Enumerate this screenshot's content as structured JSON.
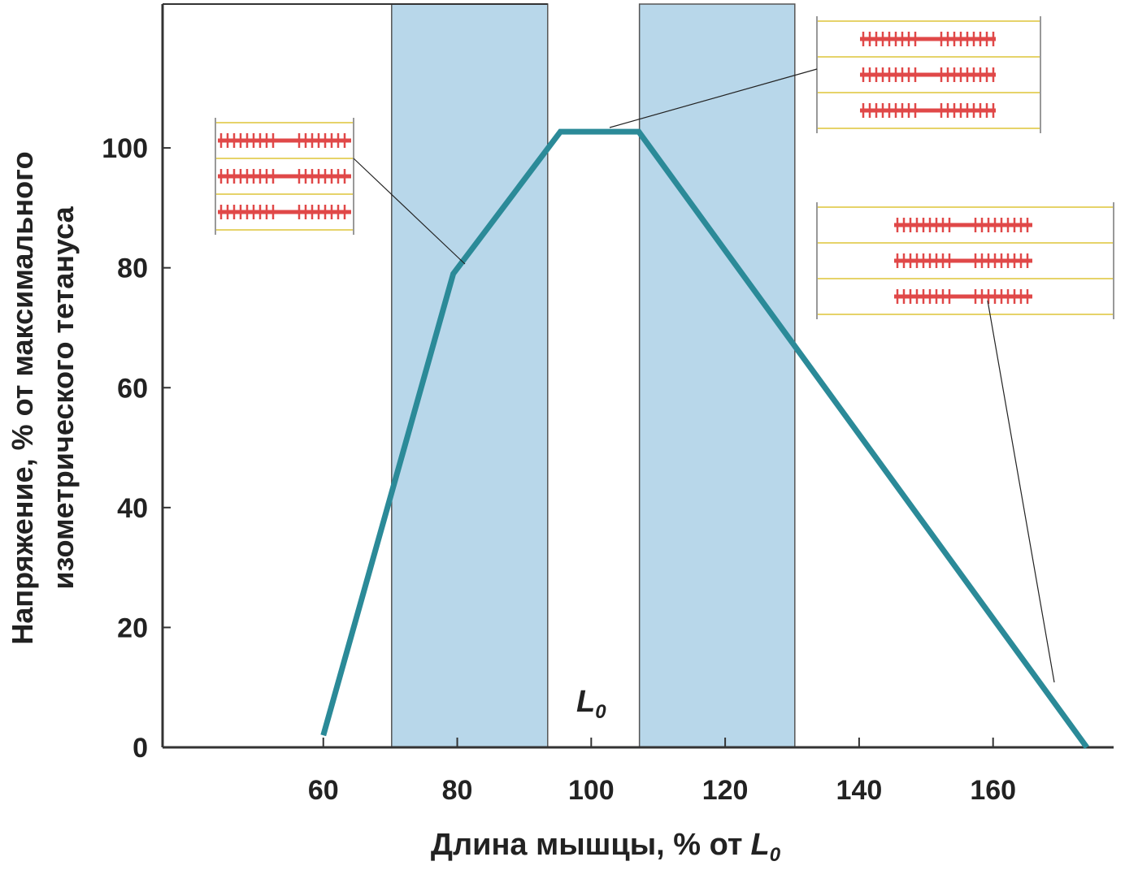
{
  "chart_data": {
    "type": "line",
    "y_label": [
      "Напряжение, % от максимального",
      "изометрического тетануса"
    ],
    "x_label": {
      "text": "Длина мышцы, % от",
      "symbol": "L",
      "subscript": "0"
    },
    "annotation": {
      "text": "L",
      "subscript": "0",
      "x": 100
    },
    "x": [
      60,
      79.4,
      95.4,
      107.1,
      174
    ],
    "values": [
      2,
      79,
      102.7,
      102.7,
      0
    ],
    "color": "#2b8a98",
    "bands": [
      [
        70.2,
        93.5
      ],
      [
        107.2,
        130.4
      ]
    ],
    "band_color": "#b8d7ea",
    "xlim": [
      36,
      178
    ],
    "xticks": [
      60,
      80,
      100,
      120,
      140,
      160
    ],
    "ylim": [
      0,
      124
    ],
    "yticks": [
      0,
      20,
      40,
      60,
      80,
      100
    ]
  }
}
